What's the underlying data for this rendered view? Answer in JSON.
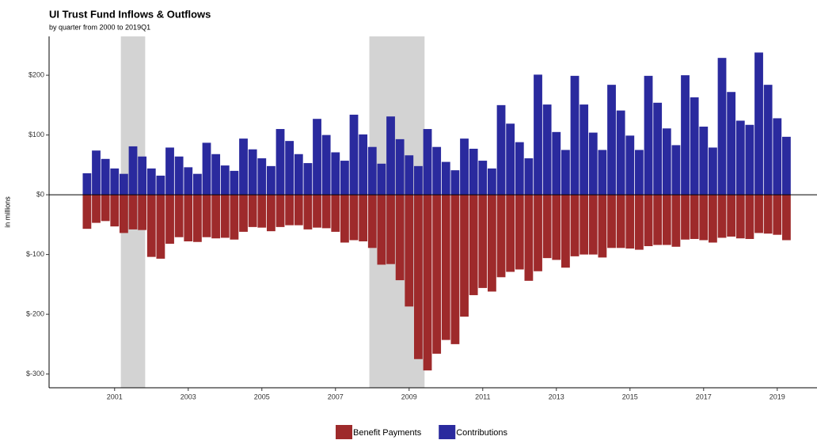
{
  "chart_data": {
    "type": "bar",
    "title": "UI Trust Fund Inflows & Outflows",
    "subtitle": "by quarter from 2000 to 2019Q1",
    "y_label": "in millions",
    "x": [
      2000.25,
      2000.5,
      2000.75,
      2001,
      2001.25,
      2001.5,
      2001.75,
      2002,
      2002.25,
      2002.5,
      2002.75,
      2003,
      2003.25,
      2003.5,
      2003.75,
      2004,
      2004.25,
      2004.5,
      2004.75,
      2005,
      2005.25,
      2005.5,
      2005.75,
      2006,
      2006.25,
      2006.5,
      2006.75,
      2007,
      2007.25,
      2007.5,
      2007.75,
      2008,
      2008.25,
      2008.5,
      2008.75,
      2009,
      2009.25,
      2009.5,
      2009.75,
      2010,
      2010.25,
      2010.5,
      2010.75,
      2011,
      2011.25,
      2011.5,
      2011.75,
      2012,
      2012.25,
      2012.5,
      2012.75,
      2013,
      2013.25,
      2013.5,
      2013.75,
      2014,
      2014.25,
      2014.5,
      2014.75,
      2015,
      2015.25,
      2015.5,
      2015.75,
      2016,
      2016.25,
      2016.5,
      2016.75,
      2017,
      2017.25,
      2017.5,
      2017.75,
      2018,
      2018.25,
      2018.5,
      2018.75,
      2019,
      2019.25
    ],
    "series": [
      {
        "name": "Benefit Payments",
        "color": "#9e2a2b",
        "values": [
          -57,
          -47,
          -44,
          -53,
          -64,
          -58,
          -59,
          -104,
          -107,
          -82,
          -71,
          -78,
          -79,
          -71,
          -73,
          -72,
          -75,
          -62,
          -54,
          -55,
          -61,
          -54,
          -51,
          -51,
          -58,
          -55,
          -56,
          -62,
          -80,
          -76,
          -78,
          -89,
          -117,
          -116,
          -143,
          -187,
          -275,
          -294,
          -266,
          -243,
          -250,
          -204,
          -168,
          -156,
          -162,
          -138,
          -129,
          -125,
          -144,
          -128,
          -106,
          -109,
          -122,
          -103,
          -100,
          -100,
          -105,
          -89,
          -89,
          -90,
          -92,
          -86,
          -84,
          -84,
          -87,
          -75,
          -74,
          -76,
          -80,
          -72,
          -70,
          -73,
          -74,
          -64,
          -65,
          -67,
          -76
        ]
      },
      {
        "name": "Contributions",
        "color": "#2a2a9e",
        "values": [
          36,
          74,
          60,
          44,
          35,
          81,
          64,
          44,
          32,
          79,
          64,
          46,
          35,
          87,
          68,
          49,
          40,
          94,
          76,
          61,
          48,
          110,
          90,
          68,
          53,
          127,
          100,
          71,
          57,
          134,
          101,
          80,
          52,
          131,
          93,
          66,
          48,
          110,
          80,
          55,
          41,
          94,
          77,
          57,
          44,
          150,
          119,
          88,
          61,
          201,
          151,
          105,
          75,
          199,
          151,
          104,
          75,
          184,
          141,
          99,
          75,
          199,
          154,
          111,
          83,
          200,
          163,
          114,
          79,
          229,
          172,
          124,
          117,
          238,
          184,
          128,
          97
        ]
      }
    ],
    "shaded_periods": [
      [
        2001.17,
        2001.83
      ],
      [
        2007.92,
        2009.42
      ]
    ],
    "xlim": [
      1999.22,
      2020.08
    ],
    "xticks": [
      2001,
      2003,
      2005,
      2007,
      2009,
      2011,
      2013,
      2015,
      2017,
      2019
    ],
    "ylim": [
      -323,
      265
    ],
    "yticks": [
      {
        "value": 200,
        "label": "$200"
      },
      {
        "value": 100,
        "label": "$100"
      },
      {
        "value": 0,
        "label": "$0"
      },
      {
        "value": -100,
        "label": "$-100"
      },
      {
        "value": -200,
        "label": "$-200"
      },
      {
        "value": -300,
        "label": "$-300"
      }
    ],
    "legend": "bottom"
  }
}
